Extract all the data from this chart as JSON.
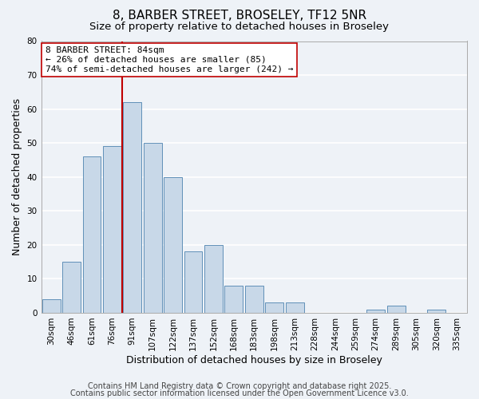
{
  "title": "8, BARBER STREET, BROSELEY, TF12 5NR",
  "subtitle": "Size of property relative to detached houses in Broseley",
  "xlabel": "Distribution of detached houses by size in Broseley",
  "ylabel": "Number of detached properties",
  "categories": [
    "30sqm",
    "46sqm",
    "61sqm",
    "76sqm",
    "91sqm",
    "107sqm",
    "122sqm",
    "137sqm",
    "152sqm",
    "168sqm",
    "183sqm",
    "198sqm",
    "213sqm",
    "228sqm",
    "244sqm",
    "259sqm",
    "274sqm",
    "289sqm",
    "305sqm",
    "320sqm",
    "335sqm"
  ],
  "values": [
    4,
    15,
    46,
    49,
    62,
    50,
    40,
    18,
    20,
    8,
    8,
    3,
    3,
    0,
    0,
    0,
    1,
    2,
    0,
    1,
    0
  ],
  "bar_color": "#c8d8e8",
  "bar_edge_color": "#6090b8",
  "highlight_line_color": "#c00000",
  "annotation_text": "8 BARBER STREET: 84sqm\n← 26% of detached houses are smaller (85)\n74% of semi-detached houses are larger (242) →",
  "annotation_box_color": "#ffffff",
  "annotation_box_edge": "#c00000",
  "ylim": [
    0,
    80
  ],
  "yticks": [
    0,
    10,
    20,
    30,
    40,
    50,
    60,
    70,
    80
  ],
  "background_color": "#eef2f7",
  "grid_color": "#ffffff",
  "footer_line1": "Contains HM Land Registry data © Crown copyright and database right 2025.",
  "footer_line2": "Contains public sector information licensed under the Open Government Licence v3.0.",
  "title_fontsize": 11,
  "subtitle_fontsize": 9.5,
  "axis_label_fontsize": 9,
  "tick_fontsize": 7.5,
  "annotation_fontsize": 8,
  "footer_fontsize": 7
}
